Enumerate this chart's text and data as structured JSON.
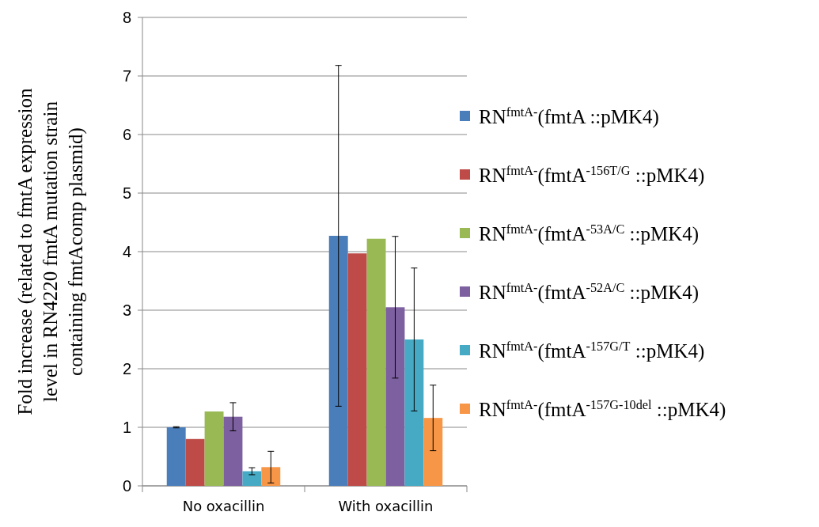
{
  "chart_data": {
    "type": "bar",
    "ylabel": "Fold increase (related to fmtA expression level in RN4220 fmtA mutation strain containing fmtAcomp plasmid)",
    "categories": [
      "No oxacillin",
      "With oxacillin"
    ],
    "series": [
      {
        "name": "RN$^{fmtA-}$(fmtA ::pMK4)",
        "color": "#4a7ebb",
        "values": [
          1.0,
          4.27
        ],
        "errors": [
          0.01,
          2.91
        ]
      },
      {
        "name": "RN$^{fmtA-}$(fmtA$^{-156T/G}$ ::pMK4)",
        "color": "#be4b48",
        "values": [
          0.8,
          3.97
        ],
        "errors": [
          null,
          null
        ]
      },
      {
        "name": "RN$^{fmtA-}$(fmtA$^{-53A/C}$ ::pMK4)",
        "color": "#98b954",
        "values": [
          1.27,
          4.22
        ],
        "errors": [
          null,
          null
        ]
      },
      {
        "name": "RN$^{fmtA-}$(fmtA$^{-52A/C}$ ::pMK4)",
        "color": "#7d60a0",
        "values": [
          1.18,
          3.05
        ],
        "errors": [
          0.24,
          1.21
        ]
      },
      {
        "name": "RN$^{fmtA-}$(fmtA$^{-157G/T}$ ::pMK4)",
        "color": "#46aac5",
        "values": [
          0.25,
          2.5
        ],
        "errors": [
          0.06,
          1.22
        ]
      },
      {
        "name": "RN$^{fmtA-}$(fmtA$^{-157G-10del}$ ::pMK4)",
        "color": "#f79646",
        "values": [
          0.32,
          1.16
        ],
        "errors": [
          0.27,
          0.56
        ]
      }
    ],
    "ylim": [
      0,
      8
    ],
    "yticks": [
      0,
      1,
      2,
      3,
      4,
      5,
      6,
      7,
      8
    ],
    "grid": "y",
    "legend": "right"
  }
}
